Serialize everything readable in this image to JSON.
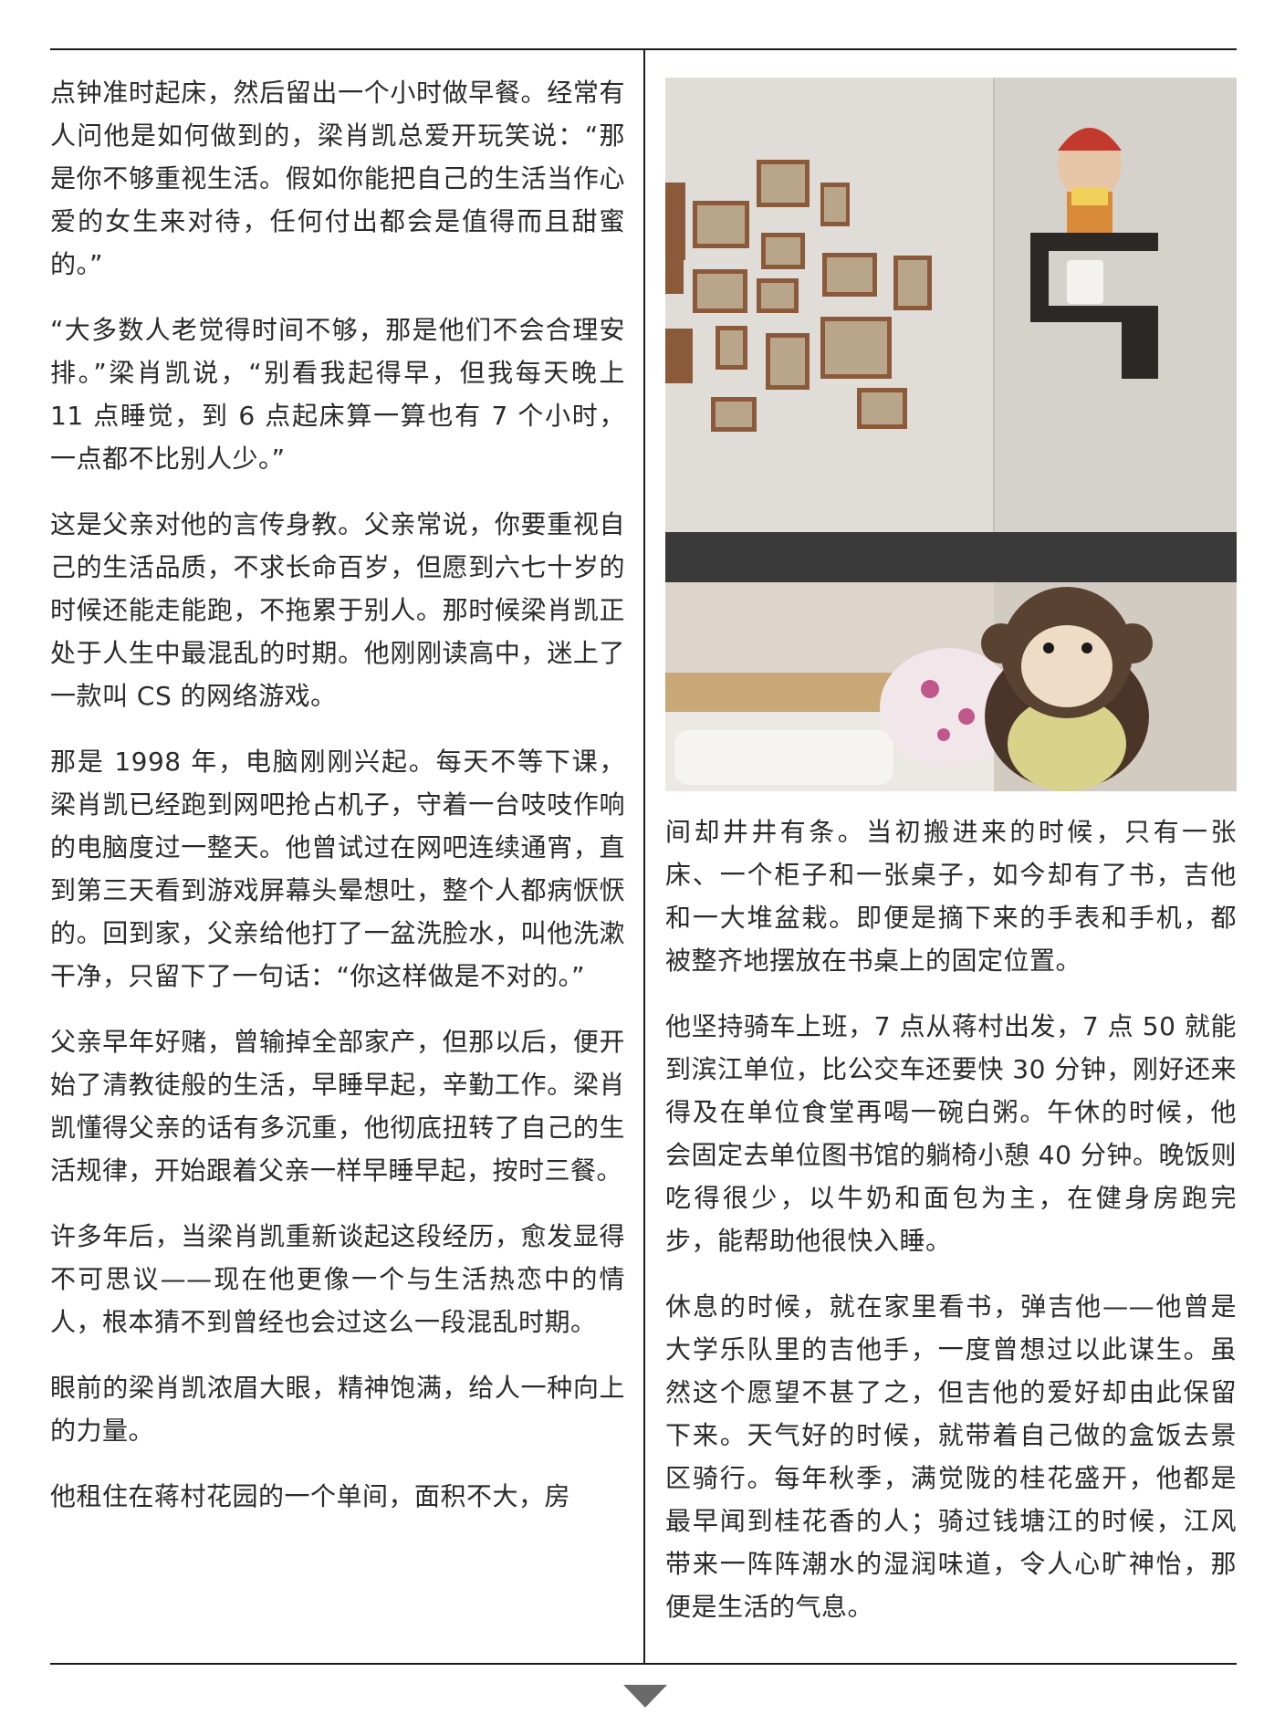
{
  "left_column": {
    "paragraphs": [
      "点钟准时起床，然后留出一个小时做早餐。经常有人问他是如何做到的，梁肖凯总爱开玩笑说：“那是你不够重视生活。假如你能把自己的生活当作心爱的女生来对待，任何付出都会是值得而且甜蜜的。”",
      "“大多数人老觉得时间不够，那是他们不会合理安排。”梁肖凯说，“别看我起得早，但我每天晚上 11 点睡觉，到 6 点起床算一算也有 7 个小时，一点都不比别人少。”",
      "这是父亲对他的言传身教。父亲常说，你要重视自己的生活品质，不求长命百岁，但愿到六七十岁的时候还能走能跑，不拖累于别人。那时候梁肖凯正处于人生中最混乱的时期。他刚刚读高中，迷上了一款叫 CS 的网络游戏。",
      "那是 1998 年，电脑刚刚兴起。每天不等下课，梁肖凯已经跑到网吧抢占机子，守着一台吱吱作响的电脑度过一整天。他曾试过在网吧连续通宵，直到第三天看到游戏屏幕头晕想吐，整个人都病恹恹的。回到家，父亲给他打了一盆洗脸水，叫他洗漱干净，只留下了一句话：“你这样做是不对的。”",
      "父亲早年好赌，曾输掉全部家产，但那以后，便开始了清教徒般的生活，早睡早起，辛勤工作。梁肖凯懂得父亲的话有多沉重，他彻底扭转了自己的生活规律，开始跟着父亲一样早睡早起，按时三餐。",
      "许多年后，当梁肖凯重新谈起这段经历，愈发显得不可思议——现在他更像一个与生活热恋中的情人，根本猜不到曾经也会过这么一段混乱时期。",
      "眼前的梁肖凯浓眉大眼，精神饱满，给人一种向上的力量。",
      "他租住在蒋村花园的一个单间，面积不大，房"
    ]
  },
  "right_column": {
    "paragraphs": [
      "间却井井有条。当初搬进来的时候，只有一张床、一个柜子和一张桌子，如今却有了书，吉他和一大堆盆栽。即便是摘下来的手表和手机，都被整齐地摆放在书桌上的固定位置。",
      "他坚持骑车上班，7 点从蒋村出发，7 点 50 就能到滨江单位，比公交车还要快 30 分钟，刚好还来得及在单位食堂再喝一碗白粥。午休的时候，他会固定去单位图书馆的躺椅小憩 40 分钟。晚饭则吃得很少，以牛奶和面包为主，在健身房跑完步，能帮助他很快入睡。",
      "休息的时候，就在家里看书，弹吉他——他曾是大学乐队里的吉他手，一度曾想过以此谋生。虽然这个愿望不甚了之，但吉他的爱好却由此保留下来。天气好的时候，就带着自己做的盒饭去景区骑行。每年秋季，满觉陇的桂花盛开，他都是最早闻到桂花香的人；骑过钱塘江的时候，江风带来一阵阵潮水的湿润味道，令人心旷神怡，那便是生活的气息。"
    ]
  },
  "colors": {
    "text": "#2a2a2a",
    "rule": "#1a1a1a",
    "arrow": "#6a6a6a"
  },
  "icons": {
    "next_page": "down-triangle-icon"
  }
}
